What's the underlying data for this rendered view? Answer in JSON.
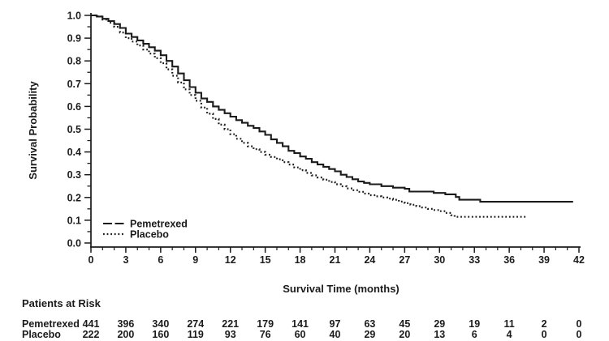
{
  "chart_data": {
    "type": "line",
    "subtype": "kaplan-meier-step",
    "title": "",
    "xlabel": "Survival Time (months)",
    "ylabel": "Survival Probability",
    "xlim": [
      0,
      42
    ],
    "ylim": [
      0.0,
      1.0
    ],
    "x_major_ticks": [
      0,
      3,
      6,
      9,
      12,
      15,
      18,
      21,
      24,
      27,
      30,
      33,
      36,
      39,
      42
    ],
    "x_minor_step": 1,
    "y_major_ticks": [
      0.0,
      0.1,
      0.2,
      0.3,
      0.4,
      0.5,
      0.6,
      0.7,
      0.8,
      0.9,
      1.0
    ],
    "y_minor_step": 0.05,
    "grid": false,
    "colors": {
      "curve": "#1b1b1b",
      "text": "#1b1b1b",
      "background": "#ffffff"
    },
    "legend": {
      "position": "inside-bottom-left",
      "entries": [
        {
          "label": "Pemetrexed",
          "line": "solid"
        },
        {
          "label": "Placebo",
          "line": "dotted"
        }
      ]
    },
    "series": [
      {
        "name": "Pemetrexed",
        "style": "solid",
        "points": [
          [
            0,
            1.0
          ],
          [
            0.5,
            0.995
          ],
          [
            1,
            0.985
          ],
          [
            1.5,
            0.975
          ],
          [
            2,
            0.962
          ],
          [
            2.5,
            0.945
          ],
          [
            3,
            0.92
          ],
          [
            3.5,
            0.905
          ],
          [
            4,
            0.89
          ],
          [
            4.5,
            0.875
          ],
          [
            5,
            0.86
          ],
          [
            5.5,
            0.845
          ],
          [
            6,
            0.825
          ],
          [
            6.5,
            0.8
          ],
          [
            7,
            0.775
          ],
          [
            7.5,
            0.745
          ],
          [
            8,
            0.715
          ],
          [
            8.5,
            0.685
          ],
          [
            9,
            0.66
          ],
          [
            9.5,
            0.635
          ],
          [
            10,
            0.62
          ],
          [
            10.5,
            0.6
          ],
          [
            11,
            0.585
          ],
          [
            11.5,
            0.57
          ],
          [
            12,
            0.555
          ],
          [
            12.5,
            0.54
          ],
          [
            13,
            0.528
          ],
          [
            13.5,
            0.515
          ],
          [
            14,
            0.505
          ],
          [
            14.5,
            0.49
          ],
          [
            15,
            0.475
          ],
          [
            15.5,
            0.455
          ],
          [
            16,
            0.44
          ],
          [
            16.5,
            0.425
          ],
          [
            17,
            0.405
          ],
          [
            17.5,
            0.395
          ],
          [
            18,
            0.38
          ],
          [
            18.5,
            0.37
          ],
          [
            19,
            0.355
          ],
          [
            19.5,
            0.345
          ],
          [
            20,
            0.335
          ],
          [
            20.5,
            0.325
          ],
          [
            21,
            0.315
          ],
          [
            21.5,
            0.3
          ],
          [
            22,
            0.29
          ],
          [
            22.5,
            0.28
          ],
          [
            23,
            0.27
          ],
          [
            23.5,
            0.264
          ],
          [
            24,
            0.258
          ],
          [
            25,
            0.25
          ],
          [
            26,
            0.243
          ],
          [
            27,
            0.238
          ],
          [
            27.4,
            0.226
          ],
          [
            29.5,
            0.22
          ],
          [
            30.5,
            0.214
          ],
          [
            31.4,
            0.202
          ],
          [
            31.7,
            0.19
          ],
          [
            33.5,
            0.181
          ],
          [
            41.5,
            0.181
          ]
        ]
      },
      {
        "name": "Placebo",
        "style": "dotted",
        "points": [
          [
            0,
            1.0
          ],
          [
            0.5,
            0.995
          ],
          [
            1,
            0.982
          ],
          [
            1.5,
            0.968
          ],
          [
            2,
            0.95
          ],
          [
            2.5,
            0.925
          ],
          [
            3,
            0.9
          ],
          [
            3.5,
            0.885
          ],
          [
            4,
            0.868
          ],
          [
            4.5,
            0.85
          ],
          [
            5,
            0.832
          ],
          [
            5.5,
            0.812
          ],
          [
            6,
            0.79
          ],
          [
            6.5,
            0.763
          ],
          [
            7,
            0.735
          ],
          [
            7.5,
            0.705
          ],
          [
            8,
            0.675
          ],
          [
            8.5,
            0.65
          ],
          [
            9,
            0.625
          ],
          [
            9.5,
            0.595
          ],
          [
            10,
            0.568
          ],
          [
            10.5,
            0.545
          ],
          [
            11,
            0.52
          ],
          [
            11.5,
            0.5
          ],
          [
            12,
            0.478
          ],
          [
            12.5,
            0.458
          ],
          [
            13,
            0.44
          ],
          [
            13.5,
            0.425
          ],
          [
            14,
            0.412
          ],
          [
            14.5,
            0.4
          ],
          [
            15,
            0.388
          ],
          [
            15.5,
            0.378
          ],
          [
            16,
            0.368
          ],
          [
            16.5,
            0.355
          ],
          [
            17,
            0.345
          ],
          [
            17.5,
            0.332
          ],
          [
            18,
            0.32
          ],
          [
            18.5,
            0.308
          ],
          [
            19,
            0.297
          ],
          [
            19.5,
            0.288
          ],
          [
            20,
            0.278
          ],
          [
            20.5,
            0.268
          ],
          [
            21,
            0.258
          ],
          [
            21.5,
            0.249
          ],
          [
            22,
            0.24
          ],
          [
            22.5,
            0.232
          ],
          [
            23,
            0.225
          ],
          [
            23.5,
            0.217
          ],
          [
            24,
            0.21
          ],
          [
            24.5,
            0.205
          ],
          [
            25,
            0.2
          ],
          [
            25.5,
            0.195
          ],
          [
            26,
            0.19
          ],
          [
            26.5,
            0.182
          ],
          [
            27,
            0.175
          ],
          [
            27.5,
            0.168
          ],
          [
            28,
            0.162
          ],
          [
            28.5,
            0.156
          ],
          [
            29,
            0.15
          ],
          [
            29.5,
            0.145
          ],
          [
            30,
            0.14
          ],
          [
            30.5,
            0.132
          ],
          [
            31,
            0.122
          ],
          [
            31.3,
            0.115
          ],
          [
            37.5,
            0.115
          ]
        ]
      }
    ],
    "patients_at_risk": {
      "title": "Patients at Risk",
      "time_points": [
        0,
        3,
        6,
        9,
        12,
        15,
        18,
        21,
        24,
        27,
        30,
        33,
        36,
        39,
        42
      ],
      "rows": [
        {
          "label": "Pemetrexed",
          "counts": [
            441,
            396,
            340,
            274,
            221,
            179,
            141,
            97,
            63,
            45,
            29,
            19,
            11,
            2,
            0
          ]
        },
        {
          "label": "Placebo",
          "counts": [
            222,
            200,
            160,
            119,
            93,
            76,
            60,
            40,
            29,
            20,
            13,
            6,
            4,
            0,
            0
          ]
        }
      ]
    }
  }
}
